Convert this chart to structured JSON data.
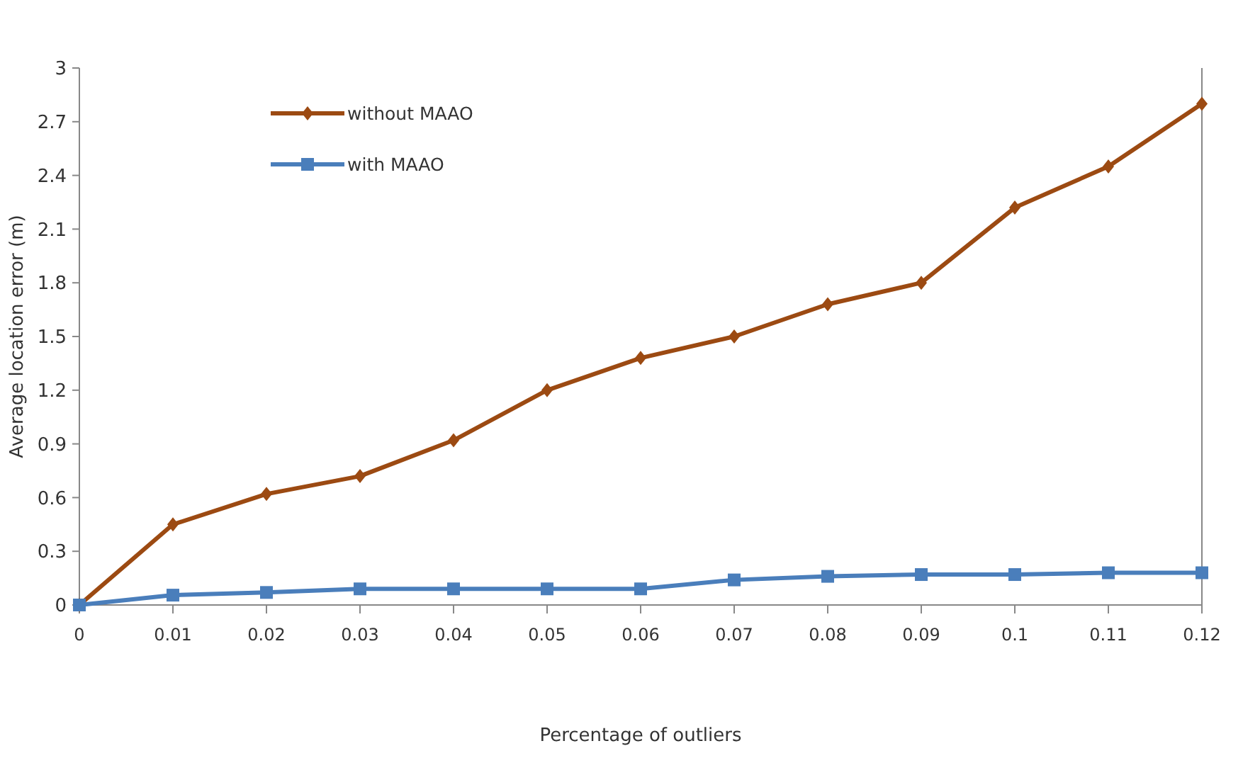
{
  "chart_data": {
    "type": "line",
    "xlabel": "Percentage of outliers",
    "ylabel": "Average location error (m)",
    "x": [
      0,
      0.01,
      0.02,
      0.03,
      0.04,
      0.05,
      0.06,
      0.07,
      0.08,
      0.09,
      0.1,
      0.11,
      0.12
    ],
    "series": [
      {
        "name": "without MAAO",
        "color": "#9c4a12",
        "marker": "diamond",
        "values": [
          0,
          0.45,
          0.62,
          0.72,
          0.92,
          1.2,
          1.38,
          1.5,
          1.68,
          1.8,
          2.22,
          2.45,
          2.8
        ]
      },
      {
        "name": "with MAAO",
        "color": "#4a7ebb",
        "marker": "square",
        "values": [
          0,
          0.055,
          0.07,
          0.09,
          0.09,
          0.09,
          0.09,
          0.14,
          0.16,
          0.17,
          0.17,
          0.18,
          0.18
        ]
      }
    ],
    "xlim": [
      0,
      0.12
    ],
    "xticks": [
      0,
      0.01,
      0.02,
      0.03,
      0.04,
      0.05,
      0.06,
      0.07,
      0.08,
      0.09,
      0.1,
      0.11,
      0.12
    ],
    "ylim": [
      0,
      3
    ],
    "yticks": [
      0,
      0.3,
      0.6,
      0.9,
      1.2,
      1.5,
      1.8,
      2.1,
      2.4,
      2.7,
      3
    ],
    "grid": false,
    "legend": "top left",
    "line_style": "solid"
  }
}
